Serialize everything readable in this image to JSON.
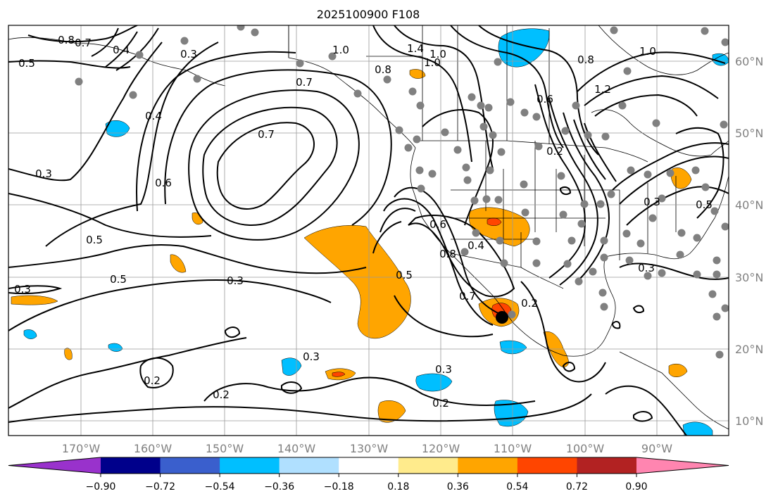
{
  "title": "2025100900 F108",
  "lon_ticks": [
    "170°W",
    "160°W",
    "150°W",
    "140°W",
    "130°W",
    "120°W",
    "110°W",
    "100°W",
    "90°W"
  ],
  "lat_ticks": [
    "60°N",
    "50°N",
    "40°N",
    "30°N",
    "20°N",
    "10°N"
  ],
  "colorbar": {
    "labels": [
      "−0.90",
      "−0.72",
      "−0.54",
      "−0.36",
      "−0.18",
      "0.18",
      "0.36",
      "0.54",
      "0.72",
      "0.90"
    ],
    "colors": [
      "#9932cc",
      "#00008b",
      "#3a5fcd",
      "#00bfff",
      "#b0e0ff",
      "#ffffff",
      "#ffeb8c",
      "#ffa500",
      "#ff4500",
      "#b22222",
      "#ff85b0"
    ]
  },
  "contour_labels": [
    {
      "text": "0.8"
    },
    {
      "text": "0.7"
    },
    {
      "text": "0.4"
    },
    {
      "text": "0.3"
    },
    {
      "text": "0.5"
    },
    {
      "text": "0.7"
    },
    {
      "text": "0.4"
    },
    {
      "text": "0.7"
    },
    {
      "text": "0.3"
    },
    {
      "text": "0.6"
    },
    {
      "text": "0.5"
    },
    {
      "text": "0.5"
    },
    {
      "text": "0.3"
    },
    {
      "text": "0.3"
    },
    {
      "text": "0.3"
    },
    {
      "text": "0.2"
    },
    {
      "text": "0.2"
    },
    {
      "text": "0.3"
    },
    {
      "text": "0.2"
    },
    {
      "text": "0.5"
    },
    {
      "text": "0.6"
    },
    {
      "text": "0.8"
    },
    {
      "text": "0.4"
    },
    {
      "text": "0.7"
    },
    {
      "text": "0.2"
    },
    {
      "text": "1.0"
    },
    {
      "text": "0.8"
    },
    {
      "text": "1.4"
    },
    {
      "text": "1.0"
    },
    {
      "text": "1.0"
    },
    {
      "text": "0.6"
    },
    {
      "text": "0.8"
    },
    {
      "text": "1.2"
    },
    {
      "text": "1.0"
    },
    {
      "text": "0.2"
    },
    {
      "text": "0.3"
    },
    {
      "text": "0.3"
    },
    {
      "text": "0.5"
    }
  ]
}
